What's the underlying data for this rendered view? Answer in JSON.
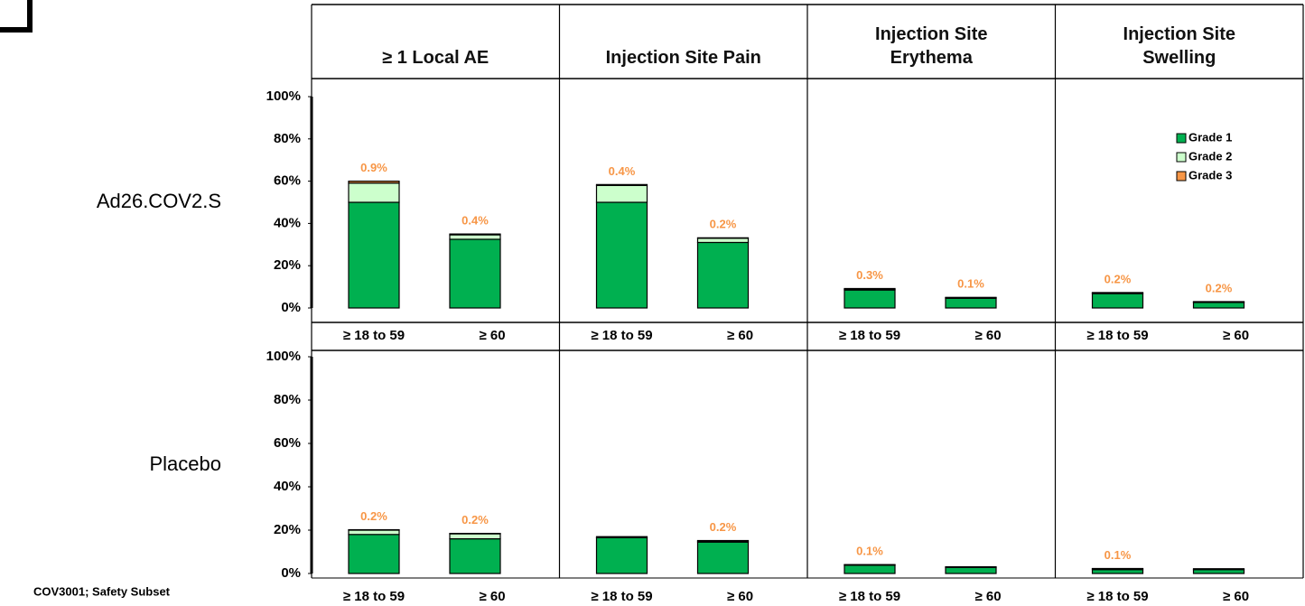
{
  "chart_data": {
    "type": "bar",
    "stacked": true,
    "legend": "upper right",
    "columns": [
      "≥ 1 Local AE",
      "Injection Site Pain",
      "Injection Site Erythema",
      "Injection Site Swelling"
    ],
    "categories": [
      "≥ 18 to 59",
      "≥ 60"
    ],
    "series": [
      {
        "name": "Grade 1",
        "color": "#00b050"
      },
      {
        "name": "Grade 2",
        "color": "#ccffcc"
      },
      {
        "name": "Grade 3",
        "color": "#f79646"
      }
    ],
    "ylim": [
      0,
      100
    ],
    "yticks": [
      {
        "value": 0,
        "label": "0%"
      },
      {
        "value": 20,
        "label": "20%"
      },
      {
        "value": 40,
        "label": "40%"
      },
      {
        "value": 60,
        "label": "60%"
      },
      {
        "value": 80,
        "label": "80%"
      },
      {
        "value": 100,
        "label": "100%"
      }
    ],
    "rows": [
      {
        "label": "Ad26.COV2.S",
        "values": [
          [
            [
              50,
              9.1,
              0.9
            ],
            [
              32.5,
              2.1,
              0.4
            ]
          ],
          [
            [
              50,
              8,
              0.4
            ],
            [
              31,
              2,
              0.2
            ]
          ],
          [
            [
              8.5,
              0.4,
              0.3
            ],
            [
              4.6,
              0.3,
              0.1
            ]
          ],
          [
            [
              6.8,
              0.3,
              0.2
            ],
            [
              2.6,
              0.2,
              0.2
            ]
          ]
        ],
        "value_labels": [
          [
            "0.9%",
            "0.4%"
          ],
          [
            "0.4%",
            "0.2%"
          ],
          [
            "0.3%",
            "0.1%"
          ],
          [
            "0.2%",
            "0.2%"
          ]
        ]
      },
      {
        "label": "Placebo",
        "values": [
          [
            [
              18,
              2,
              0.2
            ],
            [
              16,
              2.3,
              0.2
            ]
          ],
          [
            [
              16.5,
              0.5,
              0
            ],
            [
              14.5,
              0.5,
              0.2
            ]
          ],
          [
            [
              3.8,
              0.2,
              0.1
            ],
            [
              2.8,
              0.3,
              0
            ]
          ],
          [
            [
              1.8,
              0.4,
              0.1
            ],
            [
              1.8,
              0.4,
              0
            ]
          ]
        ],
        "value_labels": [
          [
            "0.2%",
            "0.2%"
          ],
          [
            null,
            "0.2%"
          ],
          [
            "0.1%",
            null
          ],
          [
            "0.1%",
            null
          ]
        ]
      }
    ],
    "footnote": "COV3001; Safety Subset"
  }
}
